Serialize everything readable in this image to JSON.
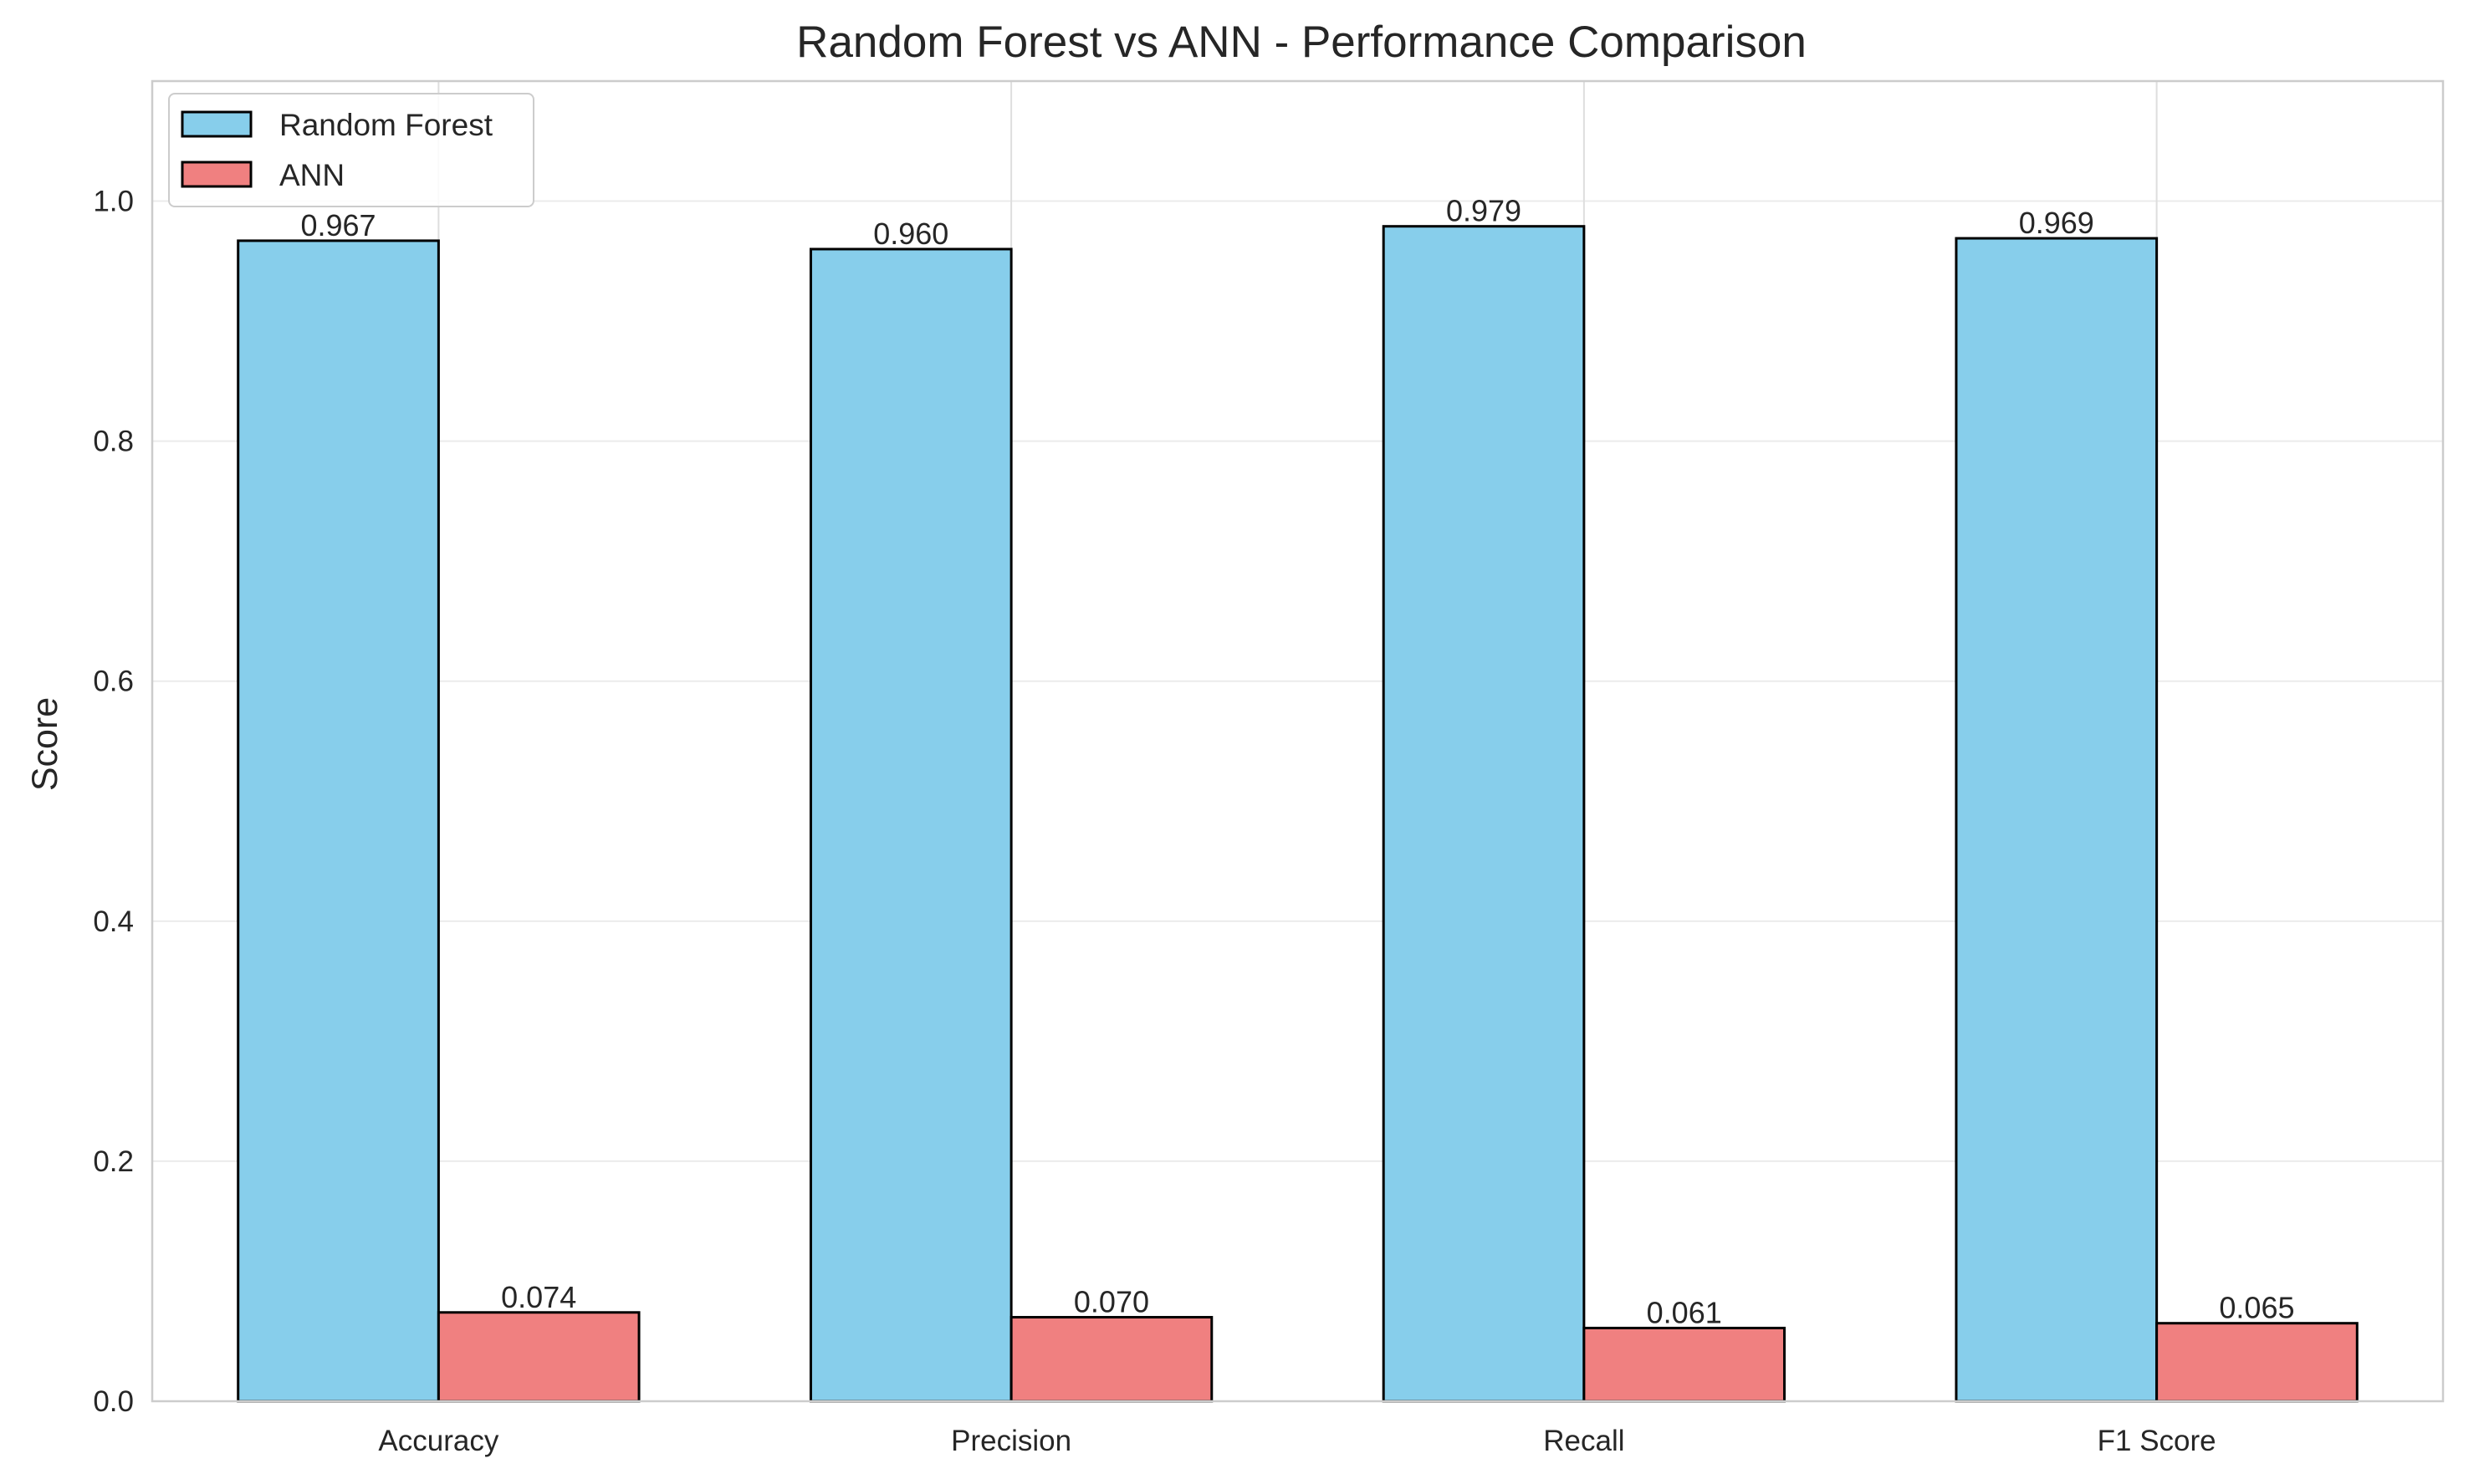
{
  "chart_data": {
    "type": "bar",
    "title": "Random Forest vs ANN - Performance Comparison",
    "xlabel": "",
    "ylabel": "Score",
    "categories": [
      "Accuracy",
      "Precision",
      "Recall",
      "F1 Score"
    ],
    "series": [
      {
        "name": "Random Forest",
        "values": [
          0.967,
          0.96,
          0.979,
          0.969
        ],
        "labels": [
          "0.967",
          "0.960",
          "0.979",
          "0.969"
        ],
        "color": "#87ceeb"
      },
      {
        "name": "ANN",
        "values": [
          0.074,
          0.07,
          0.061,
          0.065
        ],
        "labels": [
          "0.074",
          "0.070",
          "0.061",
          "0.065"
        ],
        "color": "#f08080"
      }
    ],
    "ylim": [
      0,
      1.1
    ],
    "yticks": [
      0.0,
      0.2,
      0.4,
      0.6,
      0.8,
      1.0
    ],
    "ytick_labels": [
      "0.0",
      "0.2",
      "0.4",
      "0.6",
      "0.8",
      "1.0"
    ],
    "grid": true,
    "legend_position": "top-left",
    "bar_edge_color": "#000000"
  }
}
